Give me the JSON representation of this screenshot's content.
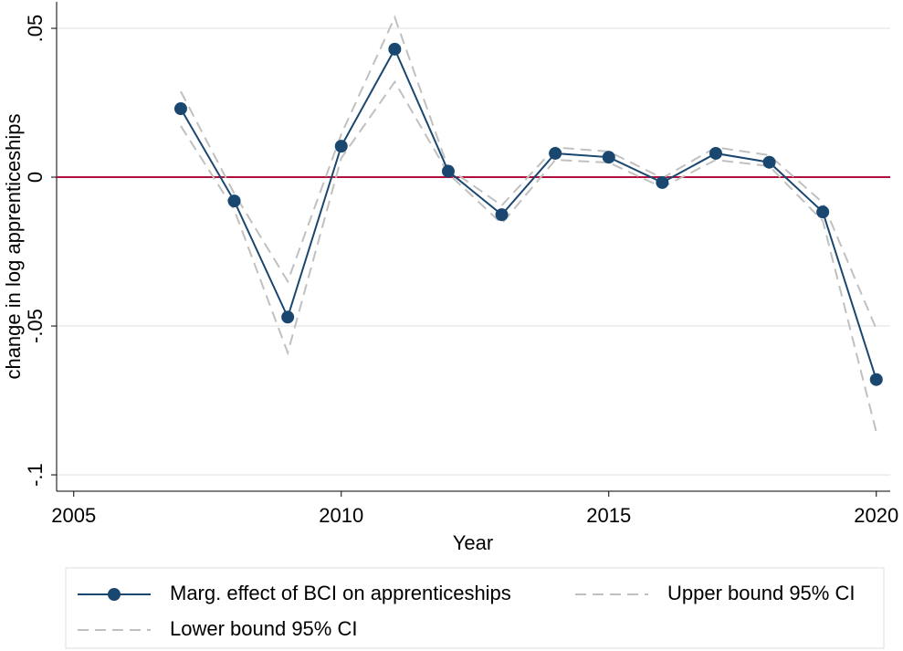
{
  "chart_data": {
    "type": "line",
    "xlabel": "Year",
    "ylabel": "change in log apprenticeships",
    "x": [
      2007,
      2008,
      2009,
      2010,
      2011,
      2012,
      2013,
      2014,
      2015,
      2016,
      2017,
      2018,
      2019,
      2020
    ],
    "series": [
      {
        "name": "Marg. effect of BCI on apprenticeships",
        "color": "#1a476f",
        "dashed": false,
        "marker": true,
        "values": [
          0.023,
          -0.008,
          -0.047,
          0.0104,
          0.043,
          0.002,
          -0.0126,
          0.008,
          0.0067,
          -0.0018,
          0.008,
          0.005,
          -0.0117,
          -0.068
        ]
      },
      {
        "name": "Upper bound 95% CI",
        "color": "#c0c0c0",
        "dashed": true,
        "marker": false,
        "values": [
          0.0288,
          -0.0055,
          -0.035,
          0.0144,
          0.0537,
          0.003,
          -0.0095,
          0.01,
          0.0086,
          -0.0003,
          0.01,
          0.0074,
          -0.0086,
          -0.051
        ]
      },
      {
        "name": "Lower bound 95% CI",
        "color": "#c0c0c0",
        "dashed": true,
        "marker": false,
        "values": [
          0.0172,
          -0.011,
          -0.059,
          0.0064,
          0.032,
          0.0012,
          -0.0156,
          0.0058,
          0.0049,
          -0.0034,
          0.0058,
          0.0037,
          -0.0147,
          -0.0856
        ]
      }
    ],
    "xlim": [
      2004.68,
      2020.26
    ],
    "ylim": [
      -0.1055,
      0.0589
    ],
    "xticks": [
      2005,
      2010,
      2015,
      2020
    ],
    "yticks": [
      {
        "value": -0.1,
        "label": "-.1"
      },
      {
        "value": -0.05,
        "label": "-.05"
      },
      0,
      {
        "value": 0.05,
        "label": ".05"
      }
    ],
    "grid": true,
    "hline": {
      "value": 0,
      "color": "#b0103a"
    },
    "legend": "bottom"
  }
}
